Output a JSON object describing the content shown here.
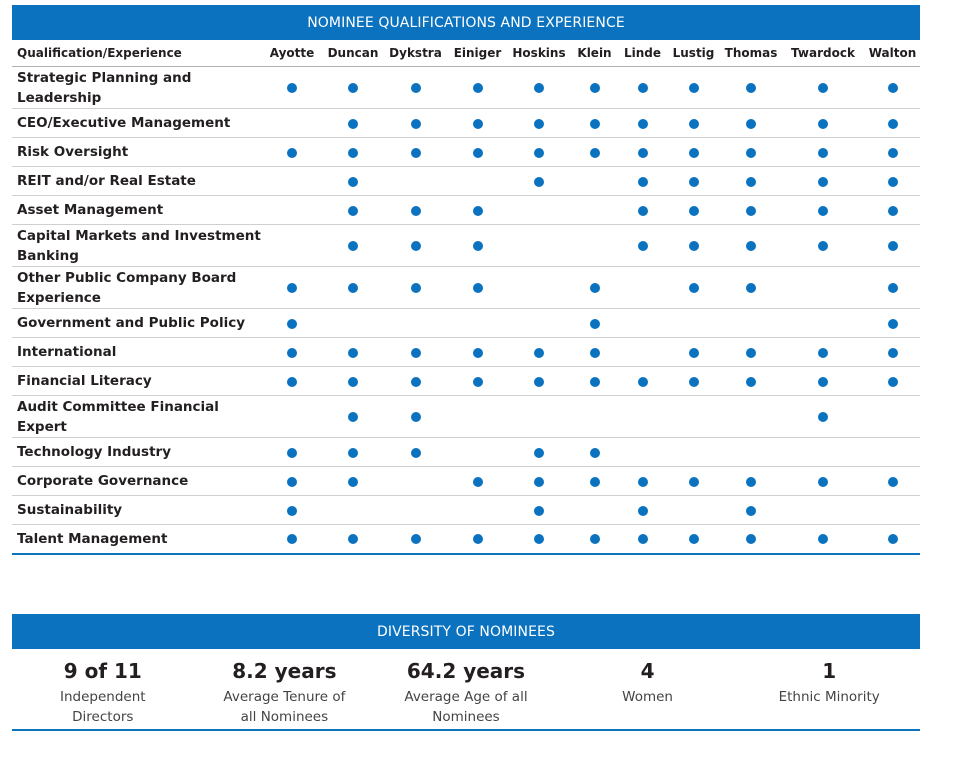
{
  "qualifications_section": {
    "title": "NOMINEE QUALIFICATIONS AND EXPERIENCE",
    "column_header": "Qualification/Experience",
    "nominees": [
      "Ayotte",
      "Duncan",
      "Dykstra",
      "Einiger",
      "Hoskins",
      "Klein",
      "Linde",
      "Lustig",
      "Thomas",
      "Twardock",
      "Walton"
    ],
    "rows": [
      {
        "label": "Strategic Planning and Leadership",
        "marks": [
          1,
          1,
          1,
          1,
          1,
          1,
          1,
          1,
          1,
          1,
          1
        ]
      },
      {
        "label": "CEO/Executive Management",
        "marks": [
          0,
          1,
          1,
          1,
          1,
          1,
          1,
          1,
          1,
          1,
          1
        ]
      },
      {
        "label": "Risk Oversight",
        "marks": [
          1,
          1,
          1,
          1,
          1,
          1,
          1,
          1,
          1,
          1,
          1
        ]
      },
      {
        "label": "REIT and/or Real Estate",
        "marks": [
          0,
          1,
          0,
          0,
          1,
          0,
          1,
          1,
          1,
          1,
          1
        ]
      },
      {
        "label": "Asset Management",
        "marks": [
          0,
          1,
          1,
          1,
          0,
          0,
          1,
          1,
          1,
          1,
          1
        ]
      },
      {
        "label": "Capital Markets and Investment Banking",
        "marks": [
          0,
          1,
          1,
          1,
          0,
          0,
          1,
          1,
          1,
          1,
          1
        ]
      },
      {
        "label": "Other Public Company Board Experience",
        "marks": [
          1,
          1,
          1,
          1,
          0,
          1,
          0,
          1,
          1,
          0,
          1
        ]
      },
      {
        "label": "Government and Public Policy",
        "marks": [
          1,
          0,
          0,
          0,
          0,
          1,
          0,
          0,
          0,
          0,
          1
        ]
      },
      {
        "label": "International",
        "marks": [
          1,
          1,
          1,
          1,
          1,
          1,
          0,
          1,
          1,
          1,
          1
        ]
      },
      {
        "label": "Financial Literacy",
        "marks": [
          1,
          1,
          1,
          1,
          1,
          1,
          1,
          1,
          1,
          1,
          1
        ]
      },
      {
        "label": "Audit Committee Financial Expert",
        "marks": [
          0,
          1,
          1,
          0,
          0,
          0,
          0,
          0,
          0,
          1,
          0
        ]
      },
      {
        "label": "Technology Industry",
        "marks": [
          1,
          1,
          1,
          0,
          1,
          1,
          0,
          0,
          0,
          0,
          0
        ]
      },
      {
        "label": "Corporate Governance",
        "marks": [
          1,
          1,
          0,
          1,
          1,
          1,
          1,
          1,
          1,
          1,
          1
        ]
      },
      {
        "label": "Sustainability",
        "marks": [
          1,
          0,
          0,
          0,
          1,
          0,
          1,
          0,
          1,
          0,
          0
        ]
      },
      {
        "label": "Talent Management",
        "marks": [
          1,
          1,
          1,
          1,
          1,
          1,
          1,
          1,
          1,
          1,
          1
        ]
      }
    ]
  },
  "diversity_section": {
    "title": "DIVERSITY OF NOMINEES",
    "stats": [
      {
        "value": "9 of 11",
        "label": "Independent Directors"
      },
      {
        "value": "8.2 years",
        "label": "Average Tenure of all Nominees"
      },
      {
        "value": "64.2 years",
        "label": "Average Age of all Nominees"
      },
      {
        "value": "4",
        "label": "Women"
      },
      {
        "value": "1",
        "label": "Ethnic Minority"
      }
    ]
  },
  "colors": {
    "accent": "#0a72bf",
    "text": "#231f20"
  }
}
